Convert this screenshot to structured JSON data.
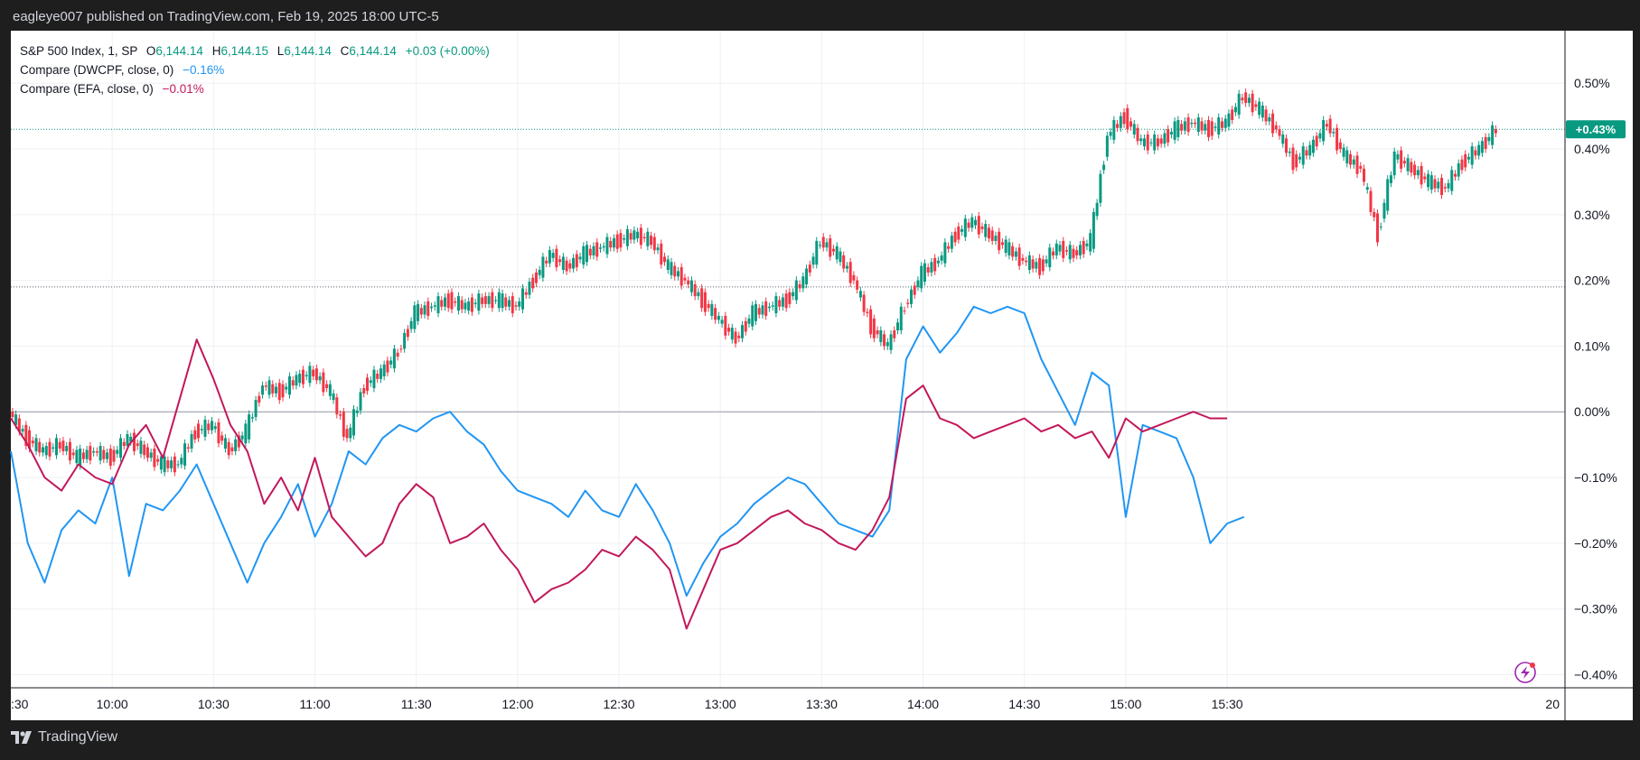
{
  "publisher": "eagleye007 published on TradingView.com, Feb 19, 2025 18:00 UTC-5",
  "footer_brand": "TradingView",
  "legend": {
    "main": {
      "symbol": "S&P 500 Index, 1, SP",
      "o_label": "O",
      "o": "6,144.14",
      "h_label": "H",
      "h": "6,144.15",
      "l_label": "L",
      "l": "6,144.14",
      "c_label": "C",
      "c": "6,144.14",
      "change": "+0.03 (+0.00%)"
    },
    "compare1": {
      "label": "Compare (DWCPF, close, 0)",
      "value": "−0.16%"
    },
    "compare2": {
      "label": "Compare (EFA, close, 0)",
      "value": "−0.01%"
    }
  },
  "price_tag": "+0.43%",
  "chart_data": {
    "type": "line",
    "x_axis_labels": [
      ":30",
      "10:00",
      "10:30",
      "11:00",
      "11:30",
      "12:00",
      "12:30",
      "13:00",
      "13:30",
      "14:00",
      "14:30",
      "15:00",
      "15:30",
      "20"
    ],
    "y_axis_labels": [
      "0.50%",
      "0.40%",
      "0.30%",
      "0.20%",
      "0.10%",
      "0.00%",
      "−0.10%",
      "−0.20%",
      "−0.30%",
      "−0.40%"
    ],
    "y_range": [
      -0.41,
      0.57
    ],
    "x_range_minutes": [
      570,
      967
    ],
    "series": [
      {
        "name": "S&P 500 Index",
        "style": "candles",
        "color_up": "#089981",
        "color_down": "#f23645",
        "points": [
          [
            570,
            0
          ],
          [
            575,
            -0.04
          ],
          [
            580,
            -0.06
          ],
          [
            585,
            -0.05
          ],
          [
            590,
            -0.07
          ],
          [
            595,
            -0.06
          ],
          [
            600,
            -0.07
          ],
          [
            605,
            -0.04
          ],
          [
            610,
            -0.06
          ],
          [
            615,
            -0.08
          ],
          [
            620,
            -0.08
          ],
          [
            625,
            -0.03
          ],
          [
            630,
            -0.02
          ],
          [
            635,
            -0.06
          ],
          [
            640,
            -0.03
          ],
          [
            645,
            0.04
          ],
          [
            650,
            0.03
          ],
          [
            655,
            0.05
          ],
          [
            660,
            0.06
          ],
          [
            665,
            0.03
          ],
          [
            670,
            -0.04
          ],
          [
            675,
            0.04
          ],
          [
            680,
            0.06
          ],
          [
            685,
            0.09
          ],
          [
            690,
            0.15
          ],
          [
            695,
            0.16
          ],
          [
            700,
            0.17
          ],
          [
            705,
            0.16
          ],
          [
            710,
            0.17
          ],
          [
            715,
            0.17
          ],
          [
            720,
            0.16
          ],
          [
            725,
            0.2
          ],
          [
            730,
            0.24
          ],
          [
            735,
            0.22
          ],
          [
            740,
            0.24
          ],
          [
            745,
            0.25
          ],
          [
            750,
            0.26
          ],
          [
            755,
            0.27
          ],
          [
            760,
            0.26
          ],
          [
            765,
            0.22
          ],
          [
            770,
            0.2
          ],
          [
            775,
            0.17
          ],
          [
            780,
            0.14
          ],
          [
            785,
            0.11
          ],
          [
            790,
            0.15
          ],
          [
            795,
            0.16
          ],
          [
            800,
            0.17
          ],
          [
            805,
            0.2
          ],
          [
            810,
            0.26
          ],
          [
            815,
            0.24
          ],
          [
            820,
            0.2
          ],
          [
            825,
            0.13
          ],
          [
            830,
            0.1
          ],
          [
            835,
            0.16
          ],
          [
            840,
            0.21
          ],
          [
            845,
            0.23
          ],
          [
            850,
            0.27
          ],
          [
            855,
            0.29
          ],
          [
            860,
            0.27
          ],
          [
            865,
            0.25
          ],
          [
            870,
            0.23
          ],
          [
            875,
            0.22
          ],
          [
            880,
            0.25
          ],
          [
            885,
            0.24
          ],
          [
            890,
            0.26
          ],
          [
            895,
            0.42
          ],
          [
            900,
            0.45
          ],
          [
            905,
            0.41
          ],
          [
            910,
            0.41
          ],
          [
            915,
            0.43
          ],
          [
            920,
            0.44
          ],
          [
            925,
            0.43
          ],
          [
            930,
            0.44
          ],
          [
            935,
            0.48
          ],
          [
            940,
            0.46
          ],
          [
            945,
            0.43
          ],
          [
            950,
            0.38
          ],
          [
            955,
            0.4
          ],
          [
            960,
            0.44
          ],
          [
            965,
            0.39
          ],
          [
            970,
            0.37
          ],
          [
            975,
            0.27
          ],
          [
            980,
            0.39
          ],
          [
            985,
            0.37
          ],
          [
            990,
            0.35
          ],
          [
            995,
            0.34
          ],
          [
            1000,
            0.38
          ],
          [
            1005,
            0.4
          ],
          [
            1010,
            0.43
          ]
        ]
      },
      {
        "name": "DWCPF",
        "style": "line",
        "color": "#2196f3",
        "points": [
          [
            570,
            -0.06
          ],
          [
            575,
            -0.2
          ],
          [
            580,
            -0.26
          ],
          [
            585,
            -0.18
          ],
          [
            590,
            -0.15
          ],
          [
            595,
            -0.17
          ],
          [
            600,
            -0.1
          ],
          [
            605,
            -0.25
          ],
          [
            610,
            -0.14
          ],
          [
            615,
            -0.15
          ],
          [
            620,
            -0.12
          ],
          [
            625,
            -0.08
          ],
          [
            630,
            -0.14
          ],
          [
            635,
            -0.2
          ],
          [
            640,
            -0.26
          ],
          [
            645,
            -0.2
          ],
          [
            650,
            -0.16
          ],
          [
            655,
            -0.11
          ],
          [
            660,
            -0.19
          ],
          [
            665,
            -0.14
          ],
          [
            670,
            -0.06
          ],
          [
            675,
            -0.08
          ],
          [
            680,
            -0.04
          ],
          [
            685,
            -0.02
          ],
          [
            690,
            -0.03
          ],
          [
            695,
            -0.01
          ],
          [
            700,
            0.0
          ],
          [
            705,
            -0.03
          ],
          [
            710,
            -0.05
          ],
          [
            715,
            -0.09
          ],
          [
            720,
            -0.12
          ],
          [
            725,
            -0.13
          ],
          [
            730,
            -0.14
          ],
          [
            735,
            -0.16
          ],
          [
            740,
            -0.12
          ],
          [
            745,
            -0.15
          ],
          [
            750,
            -0.16
          ],
          [
            755,
            -0.11
          ],
          [
            760,
            -0.15
          ],
          [
            765,
            -0.2
          ],
          [
            770,
            -0.28
          ],
          [
            775,
            -0.23
          ],
          [
            780,
            -0.19
          ],
          [
            785,
            -0.17
          ],
          [
            790,
            -0.14
          ],
          [
            795,
            -0.12
          ],
          [
            800,
            -0.1
          ],
          [
            805,
            -0.11
          ],
          [
            810,
            -0.14
          ],
          [
            815,
            -0.17
          ],
          [
            820,
            -0.18
          ],
          [
            825,
            -0.19
          ],
          [
            830,
            -0.15
          ],
          [
            835,
            0.08
          ],
          [
            840,
            0.13
          ],
          [
            845,
            0.09
          ],
          [
            850,
            0.12
          ],
          [
            855,
            0.16
          ],
          [
            860,
            0.15
          ],
          [
            865,
            0.16
          ],
          [
            870,
            0.15
          ],
          [
            875,
            0.08
          ],
          [
            880,
            0.03
          ],
          [
            885,
            -0.02
          ],
          [
            890,
            0.06
          ],
          [
            895,
            0.04
          ],
          [
            900,
            -0.16
          ],
          [
            905,
            -0.02
          ],
          [
            910,
            -0.03
          ],
          [
            915,
            -0.04
          ],
          [
            920,
            -0.1
          ],
          [
            925,
            -0.2
          ],
          [
            930,
            -0.17
          ],
          [
            935,
            -0.16
          ]
        ]
      },
      {
        "name": "EFA",
        "style": "line",
        "color": "#c2185b",
        "points": [
          [
            570,
            -0.01
          ],
          [
            575,
            -0.05
          ],
          [
            580,
            -0.1
          ],
          [
            585,
            -0.12
          ],
          [
            590,
            -0.08
          ],
          [
            595,
            -0.1
          ],
          [
            600,
            -0.11
          ],
          [
            605,
            -0.05
          ],
          [
            610,
            -0.02
          ],
          [
            615,
            -0.07
          ],
          [
            620,
            0.02
          ],
          [
            625,
            0.11
          ],
          [
            630,
            0.05
          ],
          [
            635,
            -0.02
          ],
          [
            640,
            -0.06
          ],
          [
            645,
            -0.14
          ],
          [
            650,
            -0.1
          ],
          [
            655,
            -0.15
          ],
          [
            660,
            -0.07
          ],
          [
            665,
            -0.16
          ],
          [
            670,
            -0.19
          ],
          [
            675,
            -0.22
          ],
          [
            680,
            -0.2
          ],
          [
            685,
            -0.14
          ],
          [
            690,
            -0.11
          ],
          [
            695,
            -0.13
          ],
          [
            700,
            -0.2
          ],
          [
            705,
            -0.19
          ],
          [
            710,
            -0.17
          ],
          [
            715,
            -0.21
          ],
          [
            720,
            -0.24
          ],
          [
            725,
            -0.29
          ],
          [
            730,
            -0.27
          ],
          [
            735,
            -0.26
          ],
          [
            740,
            -0.24
          ],
          [
            745,
            -0.21
          ],
          [
            750,
            -0.22
          ],
          [
            755,
            -0.19
          ],
          [
            760,
            -0.21
          ],
          [
            765,
            -0.24
          ],
          [
            770,
            -0.33
          ],
          [
            775,
            -0.27
          ],
          [
            780,
            -0.21
          ],
          [
            785,
            -0.2
          ],
          [
            790,
            -0.18
          ],
          [
            795,
            -0.16
          ],
          [
            800,
            -0.15
          ],
          [
            805,
            -0.17
          ],
          [
            810,
            -0.18
          ],
          [
            815,
            -0.2
          ],
          [
            820,
            -0.21
          ],
          [
            825,
            -0.18
          ],
          [
            830,
            -0.13
          ],
          [
            835,
            0.02
          ],
          [
            840,
            0.04
          ],
          [
            845,
            -0.01
          ],
          [
            850,
            -0.02
          ],
          [
            855,
            -0.04
          ],
          [
            860,
            -0.03
          ],
          [
            865,
            -0.02
          ],
          [
            870,
            -0.01
          ],
          [
            875,
            -0.03
          ],
          [
            880,
            -0.02
          ],
          [
            885,
            -0.04
          ],
          [
            890,
            -0.03
          ],
          [
            895,
            -0.07
          ],
          [
            900,
            -0.01
          ],
          [
            905,
            -0.03
          ],
          [
            910,
            -0.02
          ],
          [
            915,
            -0.01
          ],
          [
            920,
            0.0
          ],
          [
            925,
            -0.01
          ],
          [
            930,
            -0.01
          ]
        ]
      }
    ],
    "reference_lines": [
      {
        "y": 0.0,
        "style": "solid",
        "color": "#9598a1"
      },
      {
        "y": 0.19,
        "style": "dotted",
        "color": "#5d606b"
      },
      {
        "y": 0.43,
        "style": "dotted",
        "color": "#089981"
      }
    ],
    "grid": true,
    "legend_position": "top-left"
  }
}
